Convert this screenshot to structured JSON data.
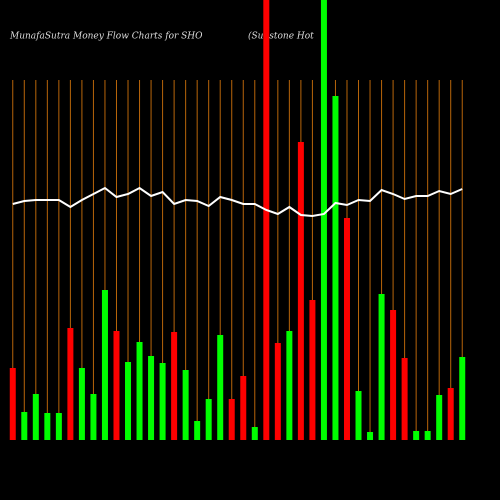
{
  "chart_data": {
    "type": "bar",
    "title": "MunafaSutra  Money Flow  Charts for SHO",
    "subtitle": "(Sunstone   Hot",
    "grid": true,
    "grid_color": "#b8650a",
    "ylim": [
      0,
      440
    ],
    "categories": [
      null,
      null,
      null,
      null,
      null,
      null,
      null,
      null,
      null,
      null,
      null,
      null,
      null,
      null,
      null,
      null,
      null,
      null,
      null,
      null,
      null,
      null,
      null,
      null,
      null,
      null,
      null,
      null,
      null,
      null,
      null,
      null,
      null,
      null,
      null,
      null,
      null,
      null,
      null,
      null
    ],
    "series": [
      {
        "type": "bar",
        "values": [
          72,
          28,
          46,
          27,
          27,
          112,
          72,
          46,
          150,
          109,
          78,
          98,
          84,
          77,
          108,
          70,
          19,
          41,
          105,
          41,
          64,
          13,
          440,
          97,
          109,
          298,
          140,
          440,
          344,
          222,
          49,
          8,
          146,
          130,
          82,
          9,
          9,
          45,
          52,
          83
        ],
        "colors": [
          "#ff0000",
          "#00ff00",
          "#00ff00",
          "#00ff00",
          "#00ff00",
          "#ff0000",
          "#00ff00",
          "#00ff00",
          "#00ff00",
          "#ff0000",
          "#00ff00",
          "#00ff00",
          "#00ff00",
          "#00ff00",
          "#ff0000",
          "#00ff00",
          "#00ff00",
          "#00ff00",
          "#00ff00",
          "#ff0000",
          "#ff0000",
          "#00ff00",
          "#ff0000",
          "#ff0000",
          "#00ff00",
          "#ff0000",
          "#ff0000",
          "#00ff00",
          "#00ff00",
          "#ff0000",
          "#00ff00",
          "#00ff00",
          "#00ff00",
          "#ff0000",
          "#ff0000",
          "#00ff00",
          "#00ff00",
          "#00ff00",
          "#ff0000",
          "#00ff00"
        ]
      },
      {
        "type": "line",
        "color": "#ffffff",
        "values": [
          236,
          239,
          240,
          240,
          240,
          233,
          240,
          246,
          252,
          243,
          246,
          252,
          244,
          248,
          236,
          240,
          239,
          234,
          243,
          240,
          236,
          236,
          230,
          226,
          233,
          225,
          224,
          226,
          237,
          235,
          240,
          239,
          250,
          246,
          241,
          244,
          244,
          249,
          246,
          251
        ]
      }
    ]
  }
}
